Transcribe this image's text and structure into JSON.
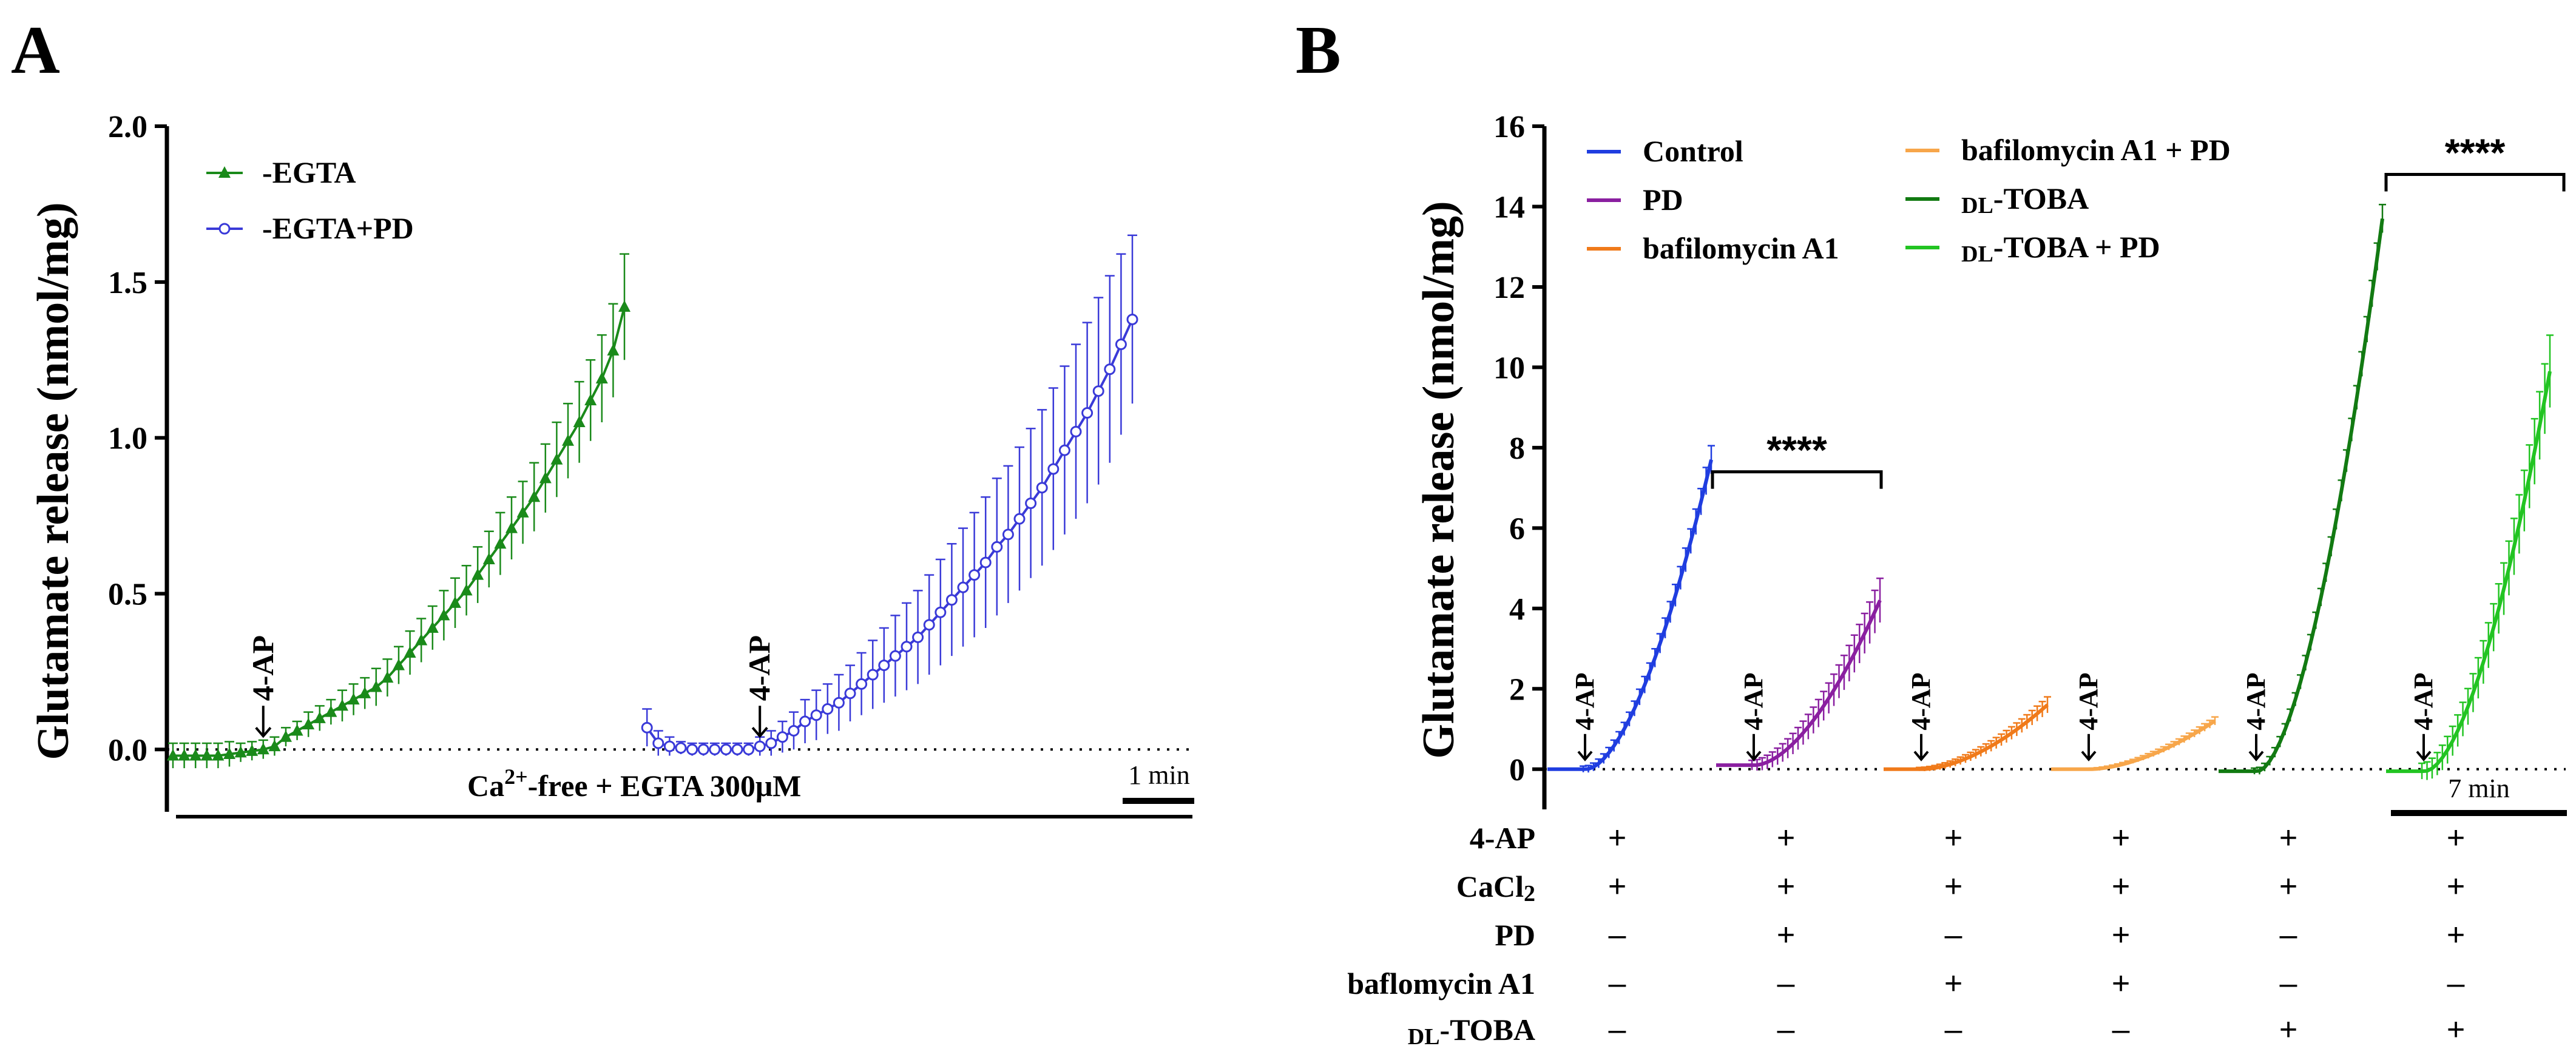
{
  "panel_a_letter": "A",
  "panel_b_letter": "B",
  "chart_data": [
    {
      "type": "line",
      "panel": "A",
      "ylabel": "Glutamate release (nmol/mg)",
      "ylim": [
        -0.2,
        2.0
      ],
      "yticks": [
        0.0,
        0.5,
        1.0,
        1.5,
        2.0
      ],
      "ytick_labels": [
        "0.0",
        "0.5",
        "1.0",
        "1.5",
        "2.0"
      ],
      "legend": [
        "-EGTA",
        "-EGTA+PD"
      ],
      "arrow_label": "4-AP",
      "condition_label": "Ca",
      "condition_sup": "2+",
      "condition_rest": "-free  + EGTA 300μM",
      "scale_label": "1 min",
      "series": [
        {
          "name": "-EGTA",
          "color": "#1a8a1a",
          "marker": "triangle",
          "x": [
            0,
            1,
            2,
            3,
            4,
            5,
            6,
            7,
            8,
            9,
            10,
            11,
            12,
            13,
            14,
            15,
            16,
            17,
            18,
            19,
            20,
            21,
            22,
            23,
            24,
            25,
            26,
            27,
            28,
            29,
            30,
            31,
            32,
            33,
            34,
            35,
            36,
            37,
            38,
            39,
            40
          ],
          "values": [
            -0.02,
            -0.02,
            -0.02,
            -0.02,
            -0.02,
            -0.015,
            -0.01,
            -0.005,
            0.0,
            0.01,
            0.04,
            0.06,
            0.08,
            0.1,
            0.12,
            0.14,
            0.16,
            0.18,
            0.2,
            0.23,
            0.27,
            0.31,
            0.35,
            0.39,
            0.43,
            0.47,
            0.51,
            0.56,
            0.61,
            0.66,
            0.71,
            0.76,
            0.81,
            0.87,
            0.93,
            0.99,
            1.05,
            1.12,
            1.19,
            1.28,
            1.42
          ],
          "errors": [
            0.04,
            0.04,
            0.04,
            0.04,
            0.04,
            0.04,
            0.03,
            0.03,
            0.03,
            0.03,
            0.03,
            0.03,
            0.04,
            0.04,
            0.04,
            0.05,
            0.05,
            0.05,
            0.06,
            0.06,
            0.06,
            0.07,
            0.07,
            0.07,
            0.08,
            0.08,
            0.08,
            0.09,
            0.09,
            0.1,
            0.1,
            0.1,
            0.11,
            0.11,
            0.12,
            0.12,
            0.13,
            0.13,
            0.14,
            0.15,
            0.17
          ]
        },
        {
          "name": "-EGTA+PD",
          "color": "#3a3ad8",
          "marker": "circle-open",
          "x": [
            42,
            43,
            44,
            45,
            46,
            47,
            48,
            49,
            50,
            51,
            52,
            53,
            54,
            55,
            56,
            57,
            58,
            59,
            60,
            61,
            62,
            63,
            64,
            65,
            66,
            67,
            68,
            69,
            70,
            71,
            72,
            73,
            74,
            75,
            76,
            77,
            78,
            79,
            80,
            81,
            82,
            83,
            84,
            85
          ],
          "values": [
            0.07,
            0.02,
            0.01,
            0.005,
            0.0,
            0.0,
            0.0,
            0.0,
            0.0,
            0.0,
            0.01,
            0.02,
            0.04,
            0.06,
            0.09,
            0.11,
            0.13,
            0.15,
            0.18,
            0.21,
            0.24,
            0.27,
            0.3,
            0.33,
            0.36,
            0.4,
            0.44,
            0.48,
            0.52,
            0.56,
            0.6,
            0.65,
            0.69,
            0.74,
            0.79,
            0.84,
            0.9,
            0.96,
            1.02,
            1.08,
            1.15,
            1.22,
            1.3,
            1.38
          ],
          "errors": [
            0.06,
            0.04,
            0.03,
            0.02,
            0.02,
            0.02,
            0.02,
            0.02,
            0.02,
            0.02,
            0.03,
            0.04,
            0.05,
            0.06,
            0.07,
            0.08,
            0.08,
            0.09,
            0.09,
            0.1,
            0.11,
            0.12,
            0.13,
            0.14,
            0.15,
            0.16,
            0.17,
            0.18,
            0.19,
            0.2,
            0.21,
            0.22,
            0.22,
            0.23,
            0.24,
            0.25,
            0.26,
            0.27,
            0.28,
            0.29,
            0.3,
            0.3,
            0.29,
            0.27
          ]
        }
      ]
    },
    {
      "type": "line",
      "panel": "B",
      "ylabel": "Glutamate release (nmol/mg)",
      "ylim": [
        -1,
        16
      ],
      "yticks": [
        0,
        2,
        4,
        6,
        8,
        10,
        12,
        14,
        16
      ],
      "ytick_labels": [
        "0",
        "2",
        "4",
        "6",
        "8",
        "10",
        "12",
        "14",
        "16"
      ],
      "arrow_label": "4-AP",
      "significance": [
        "****",
        "****"
      ],
      "scale_label": "7 min",
      "legend": [
        {
          "pre": "",
          "sub": "",
          "text": "Control",
          "color": "#1f3de0"
        },
        {
          "pre": "",
          "sub": "",
          "text": "PD",
          "color": "#8a1fa0"
        },
        {
          "pre": "",
          "sub": "",
          "text": "bafilomycin A1",
          "color": "#f07a1a"
        },
        {
          "pre": "",
          "sub": "",
          "text": "bafilomycin A1 + PD",
          "color": "#f7a64a"
        },
        {
          "pre": "",
          "sub": "DL",
          "text": "-TOBA",
          "color": "#127a12"
        },
        {
          "pre": "",
          "sub": "DL",
          "text": "-TOBA + PD",
          "color": "#22c422"
        }
      ],
      "series": [
        {
          "name": "Control",
          "color": "#1f3de0",
          "start": 0.0,
          "end": 7.7,
          "error": 0.35
        },
        {
          "name": "PD",
          "color": "#8a1fa0",
          "start": 0.1,
          "end": 4.2,
          "error": 0.55
        },
        {
          "name": "bafilomycin A1",
          "color": "#f07a1a",
          "start": 0.0,
          "end": 1.6,
          "error": 0.2
        },
        {
          "name": "bafilomycin A1 + PD",
          "color": "#f7a64a",
          "start": 0.0,
          "end": 1.2,
          "error": 0.1
        },
        {
          "name": "DL-TOBA",
          "color": "#127a12",
          "start": -0.05,
          "end": 13.7,
          "error": 0.35
        },
        {
          "name": "DL-TOBA + PD",
          "color": "#22c422",
          "start": -0.05,
          "end": 9.9,
          "error": 0.9
        }
      ],
      "table": {
        "row_labels": [
          {
            "pre": "",
            "sub": "",
            "text": "4-AP"
          },
          {
            "pre": "CaCl",
            "sub": "2",
            "text": ""
          },
          {
            "pre": "",
            "sub": "",
            "text": "PD"
          },
          {
            "pre": "",
            "sub": "",
            "text": "baflomycin A1"
          },
          {
            "pre": "",
            "sub": "DL",
            "text": "-TOBA"
          }
        ],
        "rows": [
          [
            "+",
            "+",
            "+",
            "+",
            "+",
            "+"
          ],
          [
            "+",
            "+",
            "+",
            "+",
            "+",
            "+"
          ],
          [
            "–",
            "+",
            "–",
            "+",
            "–",
            "+"
          ],
          [
            "–",
            "–",
            "+",
            "+",
            "–",
            "–"
          ],
          [
            "–",
            "–",
            "–",
            "–",
            "+",
            "+"
          ]
        ]
      }
    }
  ]
}
